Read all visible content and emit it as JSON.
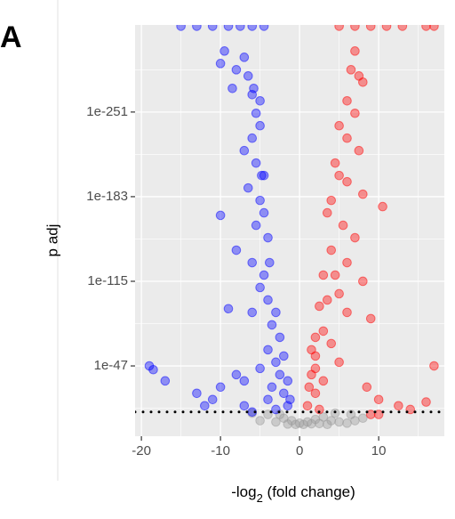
{
  "chart_data": {
    "type": "scatter",
    "panel_label": "A",
    "ylabel": "p adj",
    "xlabel_parts": [
      "-log",
      "2",
      " (fold change)"
    ],
    "xlim": [
      -20.8,
      18.3
    ],
    "xticks": [
      -20,
      -10,
      0,
      10
    ],
    "minor_xticks": [
      -15,
      -5,
      5,
      15
    ],
    "ylim": [
      3000000000.0,
      1e-321
    ],
    "log_y": true,
    "yticks": [
      1e-47,
      1e-115,
      1e-183,
      1e-251
    ],
    "minor_yticks": [
      1e-13,
      1e-81,
      1e-149,
      1e-217,
      1e-285
    ],
    "grid": true,
    "hline": 1e-10,
    "series": [
      {
        "color": "#999999",
        "x": [
          -4,
          -2,
          -1,
          0,
          1,
          2,
          3,
          4,
          5,
          6,
          -3,
          -5,
          7,
          8,
          0.5,
          -1.5,
          1.5,
          -0.5,
          2.5,
          3.5,
          -6,
          6.5,
          -2.5,
          4.5
        ],
        "values": [
          1e-08,
          1e-05,
          0.001,
          0.1,
          0.01,
          0.0001,
          1e-06,
          0.001,
          0.01,
          0.1,
          0.01,
          0.001,
          0.001,
          1e-05,
          1,
          0.5,
          0.3,
          1,
          0.2,
          1,
          1e-09,
          1e-08,
          1e-08,
          1e-09
        ]
      },
      {
        "color": "#0000ff",
        "x": [
          -15,
          -13,
          -11,
          -9,
          -7.5,
          -6,
          -4.5,
          -9.5,
          -10,
          -8,
          -7,
          -6.5,
          -8.5,
          -6,
          -5.5,
          -5,
          -6,
          -7,
          -5.5,
          -4.8,
          -6.5,
          -5,
          -10,
          -4.5,
          -5.5,
          -8,
          -6,
          -4.5,
          -5,
          -4,
          -6,
          -9,
          -3.5,
          -4,
          -3,
          -5,
          -2.5,
          -7,
          -3.5,
          -2,
          -4,
          -1.5,
          -3,
          -19,
          -18.5,
          -17,
          -13,
          -10,
          -11,
          -8,
          -12,
          -7,
          -6,
          -4,
          -3.8,
          -3,
          -2.5,
          -2,
          -1.5,
          -1.2,
          -4.5,
          -5,
          -5.8
        ],
        "values": [
          1e-320,
          1e-320,
          1e-320,
          1e-320,
          1e-320,
          1e-320,
          1e-320,
          1e-300,
          1e-290,
          1e-285,
          1e-295,
          1e-280,
          1e-270,
          1e-265,
          1e-250,
          1e-240,
          1e-230,
          1e-220,
          1e-210,
          1e-200,
          1e-190,
          1e-180,
          1e-168,
          1e-170,
          1e-160,
          1e-140,
          1e-130,
          1e-120,
          1e-110,
          1e-100,
          1e-90,
          1e-93,
          1e-80,
          1e-60,
          1e-50,
          1e-45,
          1e-40,
          1e-35,
          1e-30,
          1e-25,
          1e-20,
          1e-15,
          1e-12,
          1e-47,
          1e-44,
          1e-35,
          1e-25,
          1e-30,
          1e-20,
          1e-40,
          1e-15,
          1e-15,
          1e-10,
          1e-150,
          1e-130,
          1e-90,
          1e-70,
          1e-55,
          1e-35,
          1e-20,
          1e-200,
          1e-260,
          1e-270
        ]
      },
      {
        "color": "#ff0000",
        "x": [
          5,
          7,
          9,
          11,
          13,
          16,
          17,
          7,
          6.5,
          7.5,
          8,
          6,
          7,
          5,
          6,
          7.5,
          4.5,
          5,
          6,
          8,
          10.5,
          4,
          3.5,
          5.5,
          7,
          4,
          6,
          3,
          8,
          5,
          2.5,
          6,
          9,
          3,
          4,
          2,
          5,
          1.5,
          3,
          2,
          17,
          8.5,
          10,
          12.5,
          14,
          16,
          1,
          2.5,
          9,
          10,
          2,
          1.5,
          3.5,
          4.5,
          1.2,
          2
        ],
        "values": [
          1e-320,
          1e-320,
          1e-320,
          1e-320,
          1e-320,
          1e-320,
          1e-320,
          1e-300,
          1e-285,
          1e-280,
          1e-275,
          1e-260,
          1e-250,
          1e-240,
          1e-230,
          1e-220,
          1e-210,
          1e-200,
          1e-195,
          1e-185,
          1e-175,
          1e-180,
          1e-170,
          1e-160,
          1e-150,
          1e-140,
          1e-130,
          1e-120,
          1e-115,
          1e-105,
          1e-95,
          1e-90,
          1e-85,
          1e-75,
          1e-65,
          1e-55,
          1e-50,
          1e-40,
          1e-35,
          1e-25,
          1e-47,
          1e-30,
          1e-20,
          1e-15,
          1e-12,
          1e-18,
          1e-15,
          1e-12,
          1e-08,
          1e-08,
          1e-70,
          1e-60,
          1e-100,
          1e-120,
          1e-30,
          1e-45
        ]
      }
    ]
  }
}
